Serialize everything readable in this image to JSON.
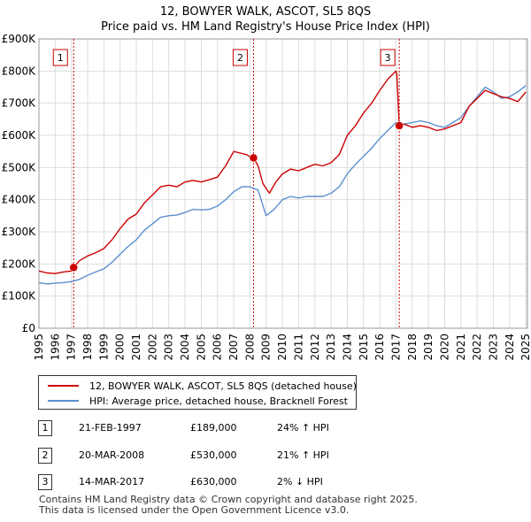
{
  "title_line1": "12, BOWYER WALK, ASCOT, SL5 8QS",
  "title_line2": "Price paid vs. HM Land Registry's House Price Index (HPI)",
  "colors": {
    "property": "#cc0000",
    "hpi": "#5b8fd0",
    "grid": "#dddddd",
    "shade": "#e8eef7"
  },
  "legend": {
    "property_label": "12, BOWYER WALK, ASCOT, SL5 8QS (detached house)",
    "hpi_label": "HPI: Average price, detached house, Bracknell Forest"
  },
  "sales": [
    {
      "num": "1",
      "date": "21-FEB-1997",
      "price": "£189,000",
      "hpi": "24% ↑ HPI"
    },
    {
      "num": "2",
      "date": "20-MAR-2008",
      "price": "£530,000",
      "hpi": "21% ↑ HPI"
    },
    {
      "num": "3",
      "date": "14-MAR-2017",
      "price": "£630,000",
      "hpi": "2% ↓ HPI"
    }
  ],
  "footer": {
    "line1": "Contains HM Land Registry data © Crown copyright and database right 2025.",
    "line2": "This data is licensed under the Open Government Licence v3.0."
  },
  "chart_data": {
    "type": "line",
    "title": "12, BOWYER WALK, ASCOT, SL5 8QS — Price paid vs. HM Land Registry's House Price Index (HPI)",
    "xlabel": "",
    "ylabel": "",
    "xlim": [
      1995,
      2025.1
    ],
    "ylim": [
      0,
      900000
    ],
    "y_ticks": [
      0,
      100000,
      200000,
      300000,
      400000,
      500000,
      600000,
      700000,
      800000,
      900000
    ],
    "y_tick_labels": [
      "£0",
      "£100K",
      "£200K",
      "£300K",
      "£400K",
      "£500K",
      "£600K",
      "£700K",
      "£800K",
      "£900K"
    ],
    "x_ticks": [
      1995,
      1996,
      1997,
      1998,
      1999,
      2000,
      2001,
      2002,
      2003,
      2004,
      2005,
      2006,
      2007,
      2008,
      2009,
      2010,
      2011,
      2012,
      2013,
      2014,
      2015,
      2016,
      2017,
      2018,
      2019,
      2020,
      2021,
      2022,
      2023,
      2024,
      2025
    ],
    "grid": true,
    "sale_markers": [
      {
        "label": "1",
        "x": 1997.14,
        "y": 189000
      },
      {
        "label": "2",
        "x": 2008.22,
        "y": 530000
      },
      {
        "label": "3",
        "x": 2017.2,
        "y": 630000
      }
    ],
    "series": [
      {
        "name": "12, BOWYER WALK, ASCOT, SL5 8QS (detached house)",
        "x": [
          1995.0,
          1995.5,
          1996.0,
          1996.5,
          1997.0,
          1997.14,
          1997.5,
          1998.0,
          1998.5,
          1999.0,
          1999.5,
          2000.0,
          2000.5,
          2001.0,
          2001.5,
          2002.0,
          2002.5,
          2003.0,
          2003.5,
          2004.0,
          2004.5,
          2005.0,
          2005.5,
          2006.0,
          2006.5,
          2007.0,
          2007.4,
          2007.8,
          2008.0,
          2008.22,
          2008.5,
          2008.8,
          2009.2,
          2009.6,
          2010.0,
          2010.5,
          2011.0,
          2011.5,
          2012.0,
          2012.5,
          2013.0,
          2013.5,
          2014.0,
          2014.5,
          2015.0,
          2015.5,
          2016.0,
          2016.5,
          2017.0,
          2017.05,
          2017.2,
          2017.5,
          2018.0,
          2018.5,
          2019.0,
          2019.5,
          2020.0,
          2020.5,
          2021.0,
          2021.5,
          2022.0,
          2022.5,
          2023.0,
          2023.5,
          2024.0,
          2024.5,
          2025.0
        ],
        "values": [
          178000,
          172000,
          170000,
          175000,
          178000,
          189000,
          210000,
          225000,
          235000,
          248000,
          275000,
          310000,
          340000,
          355000,
          390000,
          415000,
          440000,
          445000,
          440000,
          455000,
          460000,
          455000,
          462000,
          470000,
          505000,
          550000,
          545000,
          540000,
          533000,
          530000,
          505000,
          450000,
          420000,
          455000,
          480000,
          495000,
          490000,
          500000,
          510000,
          505000,
          515000,
          540000,
          600000,
          630000,
          670000,
          700000,
          740000,
          775000,
          800000,
          790000,
          630000,
          635000,
          625000,
          630000,
          625000,
          615000,
          620000,
          630000,
          640000,
          690000,
          715000,
          740000,
          730000,
          720000,
          715000,
          705000,
          735000
        ]
      },
      {
        "name": "HPI: Average price, detached house, Bracknell Forest",
        "x": [
          1995.0,
          1995.5,
          1996.0,
          1996.5,
          1997.0,
          1997.5,
          1998.0,
          1998.5,
          1999.0,
          1999.5,
          2000.0,
          2000.5,
          2001.0,
          2001.5,
          2002.0,
          2002.5,
          2003.0,
          2003.5,
          2004.0,
          2004.5,
          2005.0,
          2005.5,
          2006.0,
          2006.5,
          2007.0,
          2007.5,
          2008.0,
          2008.5,
          2009.0,
          2009.5,
          2010.0,
          2010.5,
          2011.0,
          2011.5,
          2012.0,
          2012.5,
          2013.0,
          2013.5,
          2014.0,
          2014.5,
          2015.0,
          2015.5,
          2016.0,
          2016.5,
          2017.0,
          2017.5,
          2018.0,
          2018.5,
          2019.0,
          2019.5,
          2020.0,
          2020.5,
          2021.0,
          2021.5,
          2022.0,
          2022.5,
          2023.0,
          2023.5,
          2024.0,
          2024.5,
          2025.0
        ],
        "values": [
          142000,
          138000,
          140000,
          142000,
          145000,
          152000,
          165000,
          175000,
          185000,
          205000,
          230000,
          255000,
          275000,
          305000,
          325000,
          345000,
          350000,
          352000,
          360000,
          370000,
          368000,
          370000,
          380000,
          400000,
          425000,
          440000,
          440000,
          430000,
          350000,
          370000,
          400000,
          410000,
          405000,
          410000,
          410000,
          410000,
          420000,
          440000,
          480000,
          510000,
          535000,
          560000,
          590000,
          615000,
          640000,
          635000,
          640000,
          645000,
          640000,
          630000,
          625000,
          640000,
          655000,
          690000,
          720000,
          750000,
          735000,
          715000,
          720000,
          735000,
          755000
        ]
      }
    ]
  }
}
